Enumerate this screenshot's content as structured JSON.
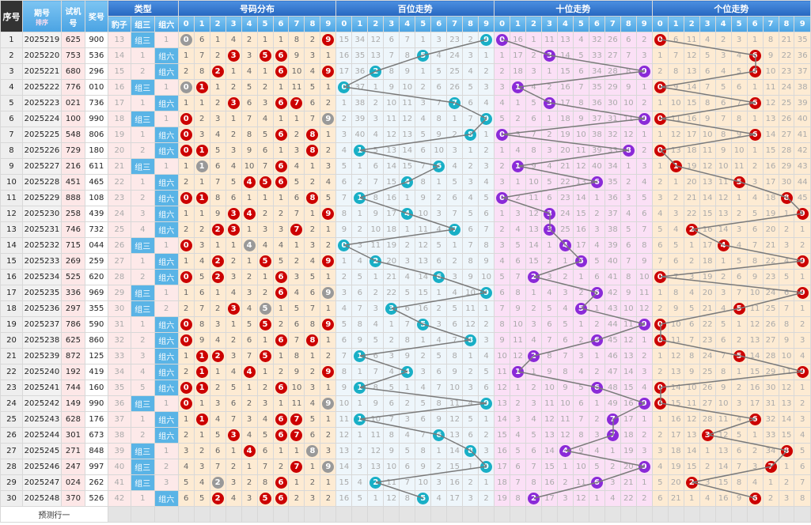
{
  "headers": {
    "seq": "序号",
    "period": "期号",
    "sort": "排序",
    "test": "试机号",
    "prize": "奖号",
    "type": "类型",
    "type_cols": [
      "豹子",
      "组三",
      "组六"
    ],
    "sections": [
      "号码分布",
      "百位走势",
      "十位走势",
      "个位走势"
    ],
    "digits": [
      "0",
      "1",
      "2",
      "3",
      "4",
      "5",
      "6",
      "7",
      "8",
      "9"
    ]
  },
  "rows": [
    {
      "seq": "1",
      "period": "2025219",
      "test": "625",
      "prize": "900"
    },
    {
      "seq": "2",
      "period": "2025220",
      "test": "753",
      "prize": "536"
    },
    {
      "seq": "3",
      "period": "2025221",
      "test": "680",
      "prize": "296"
    },
    {
      "seq": "4",
      "period": "2025222",
      "test": "776",
      "prize": "010"
    },
    {
      "seq": "5",
      "period": "2025223",
      "test": "021",
      "prize": "736"
    },
    {
      "seq": "6",
      "period": "2025224",
      "test": "100",
      "prize": "990"
    },
    {
      "seq": "7",
      "period": "2025225",
      "test": "548",
      "prize": "806"
    },
    {
      "seq": "8",
      "period": "2025226",
      "test": "729",
      "prize": "180"
    },
    {
      "seq": "9",
      "period": "2025227",
      "test": "216",
      "prize": "611"
    },
    {
      "seq": "10",
      "period": "2025228",
      "test": "451",
      "prize": "465"
    },
    {
      "seq": "11",
      "period": "2025229",
      "test": "888",
      "prize": "108"
    },
    {
      "seq": "12",
      "period": "2025230",
      "test": "258",
      "prize": "439"
    },
    {
      "seq": "13",
      "period": "2025231",
      "test": "746",
      "prize": "732"
    },
    {
      "seq": "14",
      "period": "2025232",
      "test": "715",
      "prize": "044"
    },
    {
      "seq": "15",
      "period": "2025233",
      "test": "269",
      "prize": "259"
    },
    {
      "seq": "16",
      "period": "2025234",
      "test": "525",
      "prize": "620"
    },
    {
      "seq": "17",
      "period": "2025235",
      "test": "336",
      "prize": "969"
    },
    {
      "seq": "18",
      "period": "2025236",
      "test": "297",
      "prize": "355"
    },
    {
      "seq": "19",
      "period": "2025237",
      "test": "786",
      "prize": "590"
    },
    {
      "seq": "20",
      "period": "2025238",
      "test": "625",
      "prize": "860"
    },
    {
      "seq": "21",
      "period": "2025239",
      "test": "872",
      "prize": "125"
    },
    {
      "seq": "22",
      "period": "2025240",
      "test": "192",
      "prize": "419"
    },
    {
      "seq": "23",
      "period": "2025241",
      "test": "744",
      "prize": "160"
    },
    {
      "seq": "24",
      "period": "2025242",
      "test": "149",
      "prize": "990"
    },
    {
      "seq": "25",
      "period": "2025243",
      "test": "628",
      "prize": "176"
    },
    {
      "seq": "26",
      "period": "2025244",
      "test": "301",
      "prize": "673"
    },
    {
      "seq": "27",
      "period": "2025245",
      "test": "271",
      "prize": "848"
    },
    {
      "seq": "28",
      "period": "2025246",
      "test": "247",
      "prize": "997"
    },
    {
      "seq": "29",
      "period": "2025247",
      "test": "024",
      "prize": "262"
    },
    {
      "seq": "30",
      "period": "2025248",
      "test": "370",
      "prize": "526"
    }
  ],
  "first_row_omissions": {
    "type": [
      13,
      null,
      1
    ],
    "dist": [
      null,
      6,
      1,
      4,
      2,
      1,
      1,
      8,
      2,
      null
    ],
    "bai": [
      15,
      34,
      12,
      6,
      7,
      1,
      3,
      23,
      2,
      null
    ],
    "shi": [
      null,
      16,
      1,
      11,
      13,
      4,
      32,
      26,
      6,
      2
    ],
    "ge": [
      null,
      6,
      11,
      4,
      2,
      3,
      1,
      8,
      21,
      35
    ]
  },
  "footer": {
    "predict": "预测行一"
  },
  "colors": {
    "dist_ball": "#cc0000",
    "dist_repeat_ball": "#999999",
    "bai_ball": "#18afc6",
    "shi_ball": "#8a2ad8",
    "ge_ball": "#cc0000",
    "type_hit": "#5ab4e6",
    "line": "#7a7a7a"
  }
}
